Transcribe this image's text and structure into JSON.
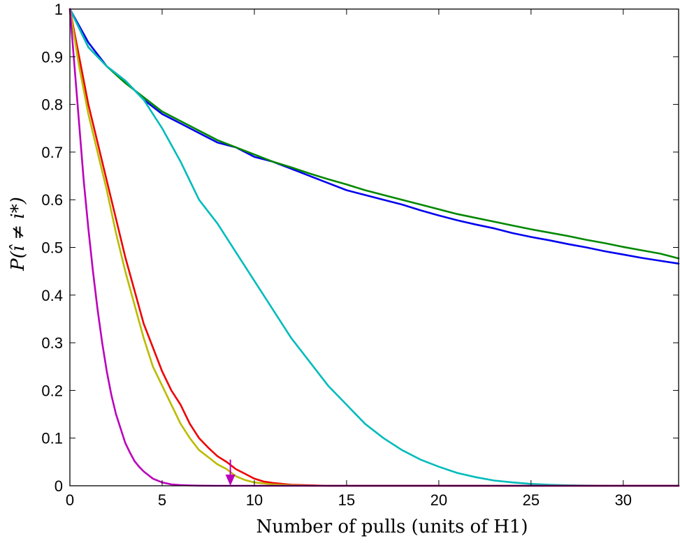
{
  "chart_data": {
    "type": "line",
    "xlabel": "Number of pulls (units of H1)",
    "ylabel": "P(î ≠ i*)",
    "xlim": [
      0,
      33
    ],
    "ylim": [
      0,
      1
    ],
    "xticks": [
      0,
      5,
      10,
      15,
      20,
      25,
      30
    ],
    "yticks": [
      0,
      0.1,
      0.2,
      0.3,
      0.4,
      0.5,
      0.6,
      0.7,
      0.8,
      0.9,
      1
    ],
    "ytick_labels": [
      "0",
      "0.1",
      "0.2",
      "0.3",
      "0.4",
      "0.5",
      "0.6",
      "0.7",
      "0.8",
      "0.9",
      "1"
    ],
    "grid": false,
    "series": [
      {
        "color": "#0000ee",
        "x": [
          0,
          1,
          2,
          3,
          4,
          5,
          6,
          7,
          8,
          9,
          10,
          11,
          12,
          13,
          14,
          15,
          16,
          17,
          18,
          19,
          20,
          21,
          22,
          23,
          24,
          25,
          26,
          27,
          28,
          29,
          30,
          31,
          32,
          33
        ],
        "y": [
          1.0,
          0.93,
          0.88,
          0.85,
          0.81,
          0.78,
          0.76,
          0.74,
          0.72,
          0.71,
          0.69,
          0.68,
          0.665,
          0.65,
          0.635,
          0.62,
          0.61,
          0.6,
          0.59,
          0.578,
          0.567,
          0.557,
          0.548,
          0.54,
          0.53,
          0.522,
          0.515,
          0.507,
          0.5,
          0.492,
          0.485,
          0.478,
          0.472,
          0.466
        ]
      },
      {
        "color": "#008800",
        "x": [
          0,
          1,
          2,
          3,
          4,
          5,
          6,
          7,
          8,
          9,
          10,
          11,
          12,
          13,
          14,
          15,
          16,
          17,
          18,
          19,
          20,
          21,
          22,
          23,
          24,
          25,
          26,
          27,
          28,
          29,
          30,
          31,
          32,
          33
        ],
        "y": [
          1.0,
          0.92,
          0.88,
          0.845,
          0.815,
          0.785,
          0.765,
          0.745,
          0.725,
          0.71,
          0.695,
          0.68,
          0.668,
          0.655,
          0.643,
          0.632,
          0.62,
          0.61,
          0.6,
          0.59,
          0.58,
          0.57,
          0.562,
          0.554,
          0.546,
          0.538,
          0.531,
          0.524,
          0.516,
          0.509,
          0.501,
          0.494,
          0.487,
          0.477
        ]
      },
      {
        "color": "#00bbbb",
        "x": [
          0,
          1,
          2,
          3,
          4,
          5,
          6,
          7,
          8,
          9,
          10,
          11,
          12,
          13,
          14,
          15,
          16,
          17,
          18,
          19,
          20,
          21,
          22,
          23,
          24,
          25,
          26,
          27,
          28,
          30,
          33
        ],
        "y": [
          1.0,
          0.92,
          0.88,
          0.85,
          0.81,
          0.75,
          0.68,
          0.6,
          0.55,
          0.49,
          0.43,
          0.37,
          0.31,
          0.26,
          0.21,
          0.17,
          0.13,
          0.1,
          0.075,
          0.055,
          0.04,
          0.027,
          0.018,
          0.011,
          0.007,
          0.004,
          0.002,
          0.001,
          0.0005,
          0,
          0
        ]
      },
      {
        "color": "#ee0000",
        "x": [
          0,
          0.5,
          1,
          1.5,
          2,
          2.5,
          3,
          3.5,
          4,
          4.5,
          5,
          5.5,
          6,
          6.5,
          7,
          7.5,
          8,
          8.5,
          9,
          9.5,
          10,
          10.5,
          11,
          12,
          13,
          14,
          33
        ],
        "y": [
          1.0,
          0.9,
          0.8,
          0.72,
          0.64,
          0.56,
          0.48,
          0.41,
          0.34,
          0.29,
          0.24,
          0.2,
          0.17,
          0.13,
          0.1,
          0.08,
          0.062,
          0.05,
          0.035,
          0.025,
          0.015,
          0.009,
          0.006,
          0.002,
          0.001,
          0,
          0
        ]
      },
      {
        "color": "#bbbb00",
        "x": [
          0,
          0.5,
          1,
          1.5,
          2,
          2.5,
          3,
          3.5,
          4,
          4.5,
          5,
          5.5,
          6,
          6.5,
          7,
          7.5,
          8,
          8.5,
          9,
          9.5,
          10,
          11,
          12,
          13,
          33
        ],
        "y": [
          1.0,
          0.88,
          0.78,
          0.7,
          0.62,
          0.53,
          0.45,
          0.38,
          0.31,
          0.25,
          0.21,
          0.17,
          0.13,
          0.1,
          0.075,
          0.06,
          0.045,
          0.035,
          0.02,
          0.012,
          0.007,
          0.003,
          0.001,
          0,
          0
        ]
      },
      {
        "color": "#bb00bb",
        "x": [
          0,
          0.25,
          0.5,
          0.75,
          1,
          1.25,
          1.5,
          1.75,
          2,
          2.25,
          2.5,
          2.75,
          3,
          3.25,
          3.5,
          3.75,
          4,
          4.5,
          5,
          5.5,
          6,
          6.5,
          7,
          8,
          33
        ],
        "y": [
          1.0,
          0.88,
          0.76,
          0.64,
          0.54,
          0.45,
          0.37,
          0.3,
          0.24,
          0.19,
          0.15,
          0.12,
          0.09,
          0.07,
          0.052,
          0.04,
          0.03,
          0.015,
          0.007,
          0.003,
          0.0015,
          0.0007,
          0.0003,
          0,
          0
        ]
      }
    ],
    "annotations": [
      {
        "type": "arrow",
        "color": "#bb00bb",
        "x": 8.7,
        "y_from": 0.055,
        "y_to": 0
      }
    ]
  }
}
